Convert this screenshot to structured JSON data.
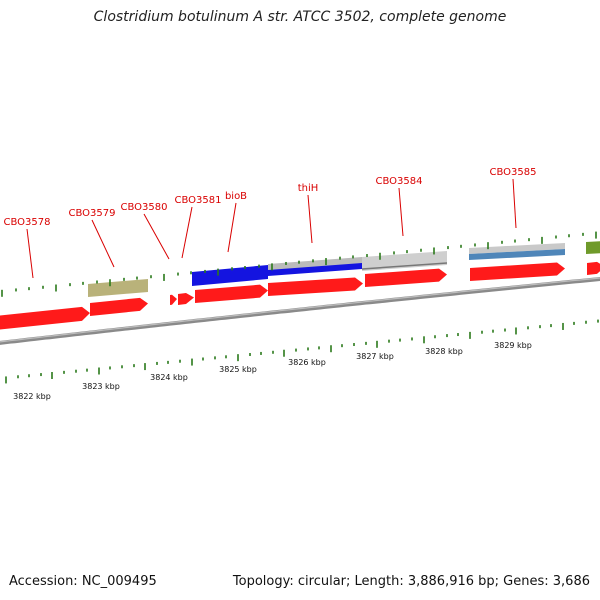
{
  "title": "Clostridium botulinum A str. ATCC 3502, complete genome",
  "accession": "Accession: NC_009495",
  "topology": "Topology: circular; Length: 3,886,916 bp; Genes: 3,686",
  "colors": {
    "gene_red": "#ff1a1a",
    "label_red": "#d90000",
    "tick_green": "#2a7a1a",
    "backbone_gray": "#8a8a8a",
    "blue": "#1414e0",
    "light_gray": "#cfcfcf",
    "olive": "#b9b27a",
    "steel_blue": "#4f86b9",
    "green": "#6f9a2a"
  },
  "gene_labels": [
    "CBO3578",
    "CBO3579",
    "CBO3580",
    "CBO3581",
    "bioB",
    "thiH",
    "CBO3584",
    "CBO3585"
  ],
  "scale_labels": [
    "3822 kbp",
    "3823 kbp",
    "3824 kbp",
    "3825 kbp",
    "3826 kbp",
    "3827 kbp",
    "3828 kbp",
    "3829 kbp"
  ]
}
